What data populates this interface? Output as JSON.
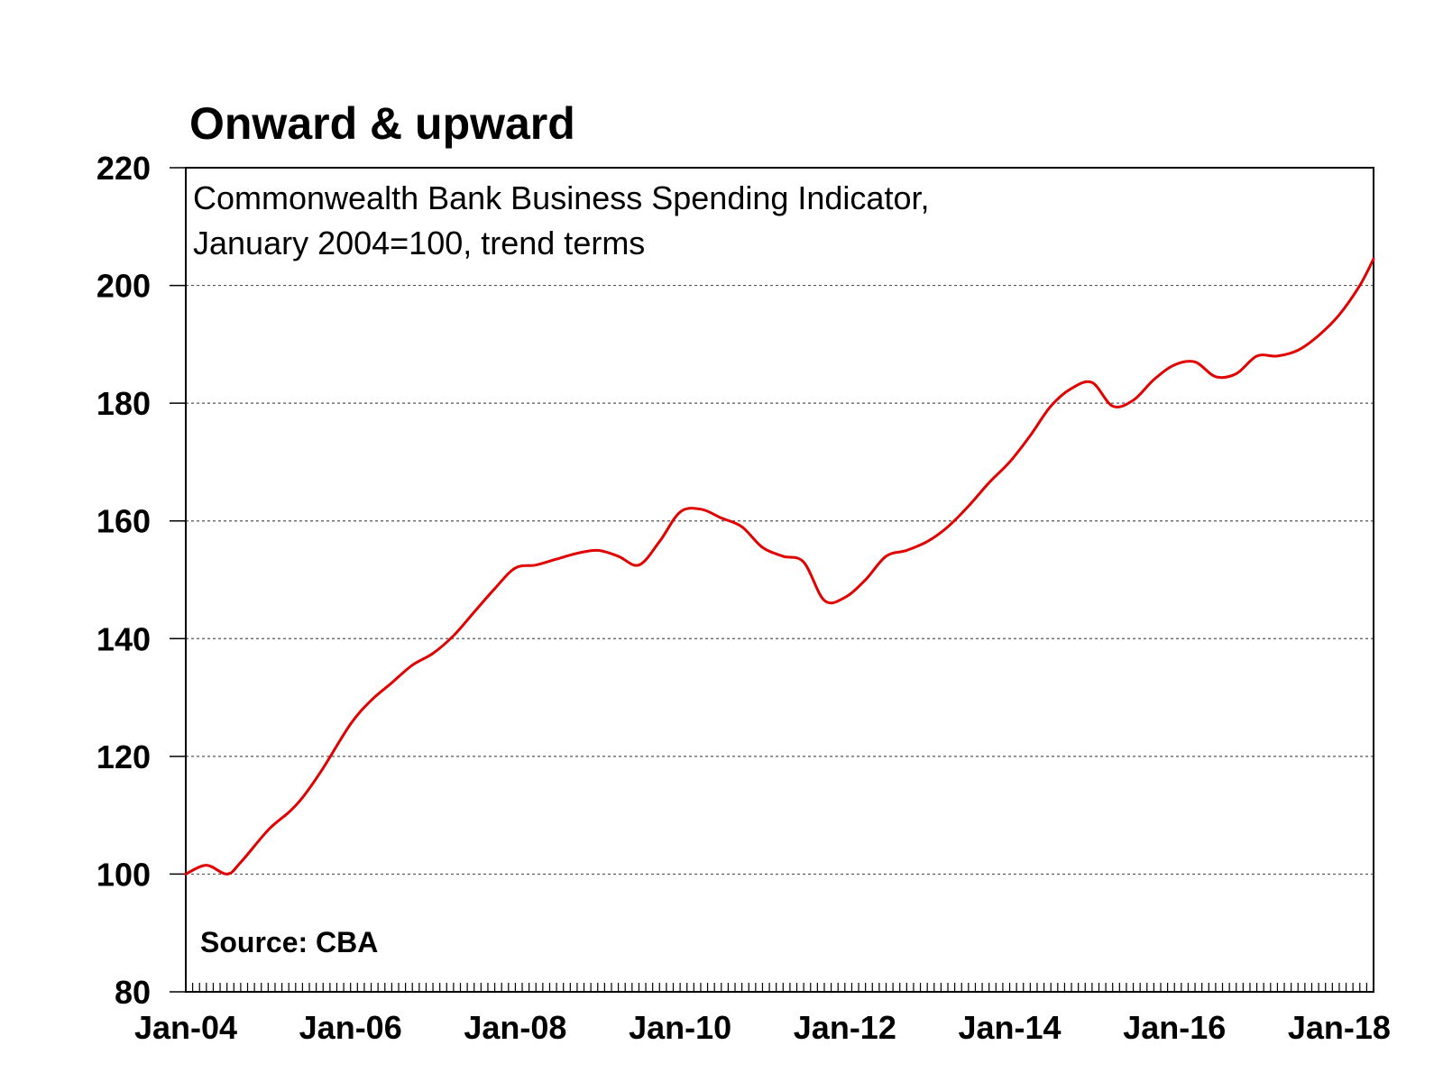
{
  "chart_data": {
    "type": "line",
    "title": "Onward & upward",
    "subtitle_lines": [
      "Commonwealth Bank Business Spending Indicator,",
      "January 2004=100, trend terms"
    ],
    "source": "Source: CBA",
    "xlabel": "",
    "ylabel": "",
    "ylim": [
      80,
      220
    ],
    "yticks": [
      80,
      100,
      120,
      140,
      160,
      180,
      200,
      220
    ],
    "xticks": [
      "Jan-04",
      "Jan-06",
      "Jan-08",
      "Jan-10",
      "Jan-12",
      "Jan-14",
      "Jan-16",
      "Jan-18"
    ],
    "xlim": [
      "2004-01",
      "2018-06"
    ],
    "grid": "horizontal dashed",
    "series": [
      {
        "color": "#e00000",
        "points": [
          [
            "2004-01",
            100
          ],
          [
            "2004-04",
            101.5
          ],
          [
            "2004-07",
            100
          ],
          [
            "2004-09",
            102
          ],
          [
            "2005-01",
            107.5
          ],
          [
            "2005-04",
            110.5
          ],
          [
            "2005-06",
            113
          ],
          [
            "2005-09",
            118
          ],
          [
            "2006-01",
            125.5
          ],
          [
            "2006-04",
            129.5
          ],
          [
            "2006-07",
            132.5
          ],
          [
            "2006-10",
            135.5
          ],
          [
            "2007-01",
            137.5
          ],
          [
            "2007-04",
            140.5
          ],
          [
            "2007-07",
            144.5
          ],
          [
            "2007-10",
            148.5
          ],
          [
            "2008-01",
            152
          ],
          [
            "2008-04",
            152.5
          ],
          [
            "2008-07",
            153.5
          ],
          [
            "2008-10",
            154.5
          ],
          [
            "2009-01",
            155
          ],
          [
            "2009-04",
            154
          ],
          [
            "2009-07",
            152.5
          ],
          [
            "2009-10",
            156.5
          ],
          [
            "2010-01",
            161.5
          ],
          [
            "2010-04",
            162
          ],
          [
            "2010-07",
            160.5
          ],
          [
            "2010-10",
            159
          ],
          [
            "2011-01",
            155.5
          ],
          [
            "2011-04",
            154
          ],
          [
            "2011-07",
            153
          ],
          [
            "2011-10",
            146.5
          ],
          [
            "2012-01",
            147
          ],
          [
            "2012-04",
            150
          ],
          [
            "2012-07",
            154
          ],
          [
            "2012-10",
            155
          ],
          [
            "2013-01",
            156.5
          ],
          [
            "2013-04",
            159
          ],
          [
            "2013-07",
            162.5
          ],
          [
            "2013-10",
            166.5
          ],
          [
            "2014-01",
            170
          ],
          [
            "2014-04",
            174.5
          ],
          [
            "2014-07",
            179.5
          ],
          [
            "2014-10",
            182.5
          ],
          [
            "2015-01",
            183.5
          ],
          [
            "2015-04",
            179.5
          ],
          [
            "2015-07",
            180.5
          ],
          [
            "2015-10",
            184
          ],
          [
            "2016-01",
            186.5
          ],
          [
            "2016-04",
            187
          ],
          [
            "2016-07",
            184.5
          ],
          [
            "2016-10",
            185
          ],
          [
            "2017-01",
            188
          ],
          [
            "2017-04",
            188
          ],
          [
            "2017-07",
            189
          ],
          [
            "2017-10",
            191.5
          ],
          [
            "2018-01",
            195
          ],
          [
            "2018-04",
            200
          ],
          [
            "2018-06",
            204.5
          ]
        ]
      }
    ]
  }
}
